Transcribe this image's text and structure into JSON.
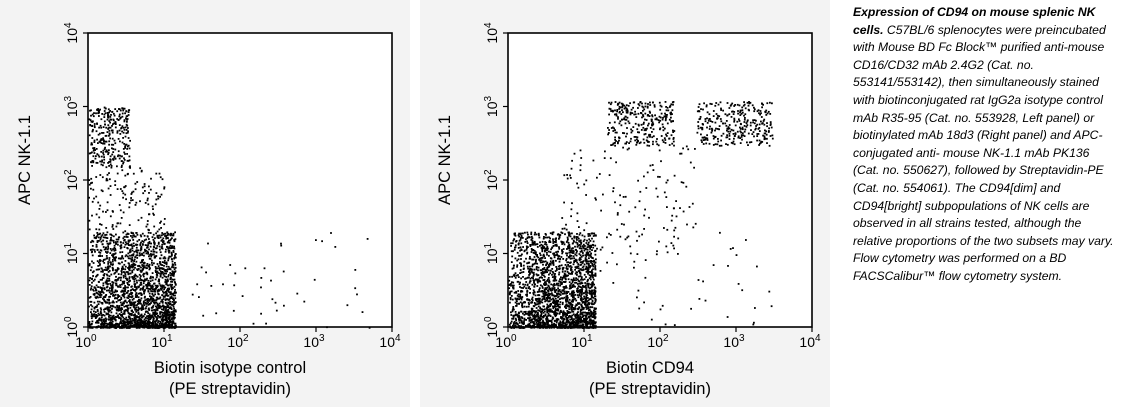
{
  "chart_data": [
    {
      "type": "scatter",
      "panel": "left",
      "xlabel_lines": [
        "Biotin isotype control",
        "(PE streptavidin)"
      ],
      "ylabel": "APC NK-1.1",
      "x_scale": "log",
      "y_scale": "log",
      "xlim": [
        1,
        10000
      ],
      "ylim": [
        1,
        10000
      ],
      "x_ticks": [
        {
          "base": "10",
          "exp": "0",
          "value": 1
        },
        {
          "base": "10",
          "exp": "1",
          "value": 10
        },
        {
          "base": "10",
          "exp": "2",
          "value": 100
        },
        {
          "base": "10",
          "exp": "3",
          "value": 1000
        },
        {
          "base": "10",
          "exp": "4",
          "value": 10000
        }
      ],
      "y_ticks": [
        {
          "base": "10",
          "exp": "0",
          "value": 1
        },
        {
          "base": "10",
          "exp": "1",
          "value": 10
        },
        {
          "base": "10",
          "exp": "2",
          "value": 100
        },
        {
          "base": "10",
          "exp": "3",
          "value": 1000
        },
        {
          "base": "10",
          "exp": "4",
          "value": 10000
        }
      ],
      "grid": false,
      "populations": [
        {
          "label": "NK-1.1 negative",
          "x_range": [
            1,
            14
          ],
          "y_range": [
            1,
            20
          ],
          "density": "very high"
        },
        {
          "label": "NK-1.1 positive",
          "x_range": [
            1,
            3.5
          ],
          "y_range": [
            150,
            1000
          ],
          "density": "medium"
        },
        {
          "label": "intermediate",
          "x_range": [
            1,
            10
          ],
          "y_range": [
            20,
            150
          ],
          "density": "low"
        },
        {
          "label": "scattered",
          "x_range": [
            14,
            5000
          ],
          "y_range": [
            1,
            20
          ],
          "density": "sparse"
        }
      ]
    },
    {
      "type": "scatter",
      "panel": "right",
      "xlabel_lines": [
        "Biotin CD94",
        "(PE streptavidin)"
      ],
      "ylabel": "APC NK-1.1",
      "x_scale": "log",
      "y_scale": "log",
      "xlim": [
        1,
        10000
      ],
      "ylim": [
        1,
        10000
      ],
      "x_ticks": [
        {
          "base": "10",
          "exp": "0",
          "value": 1
        },
        {
          "base": "10",
          "exp": "1",
          "value": 10
        },
        {
          "base": "10",
          "exp": "2",
          "value": 100
        },
        {
          "base": "10",
          "exp": "3",
          "value": 1000
        },
        {
          "base": "10",
          "exp": "4",
          "value": 10000
        }
      ],
      "y_ticks": [
        {
          "base": "10",
          "exp": "0",
          "value": 1
        },
        {
          "base": "10",
          "exp": "1",
          "value": 10
        },
        {
          "base": "10",
          "exp": "2",
          "value": 100
        },
        {
          "base": "10",
          "exp": "3",
          "value": 1000
        },
        {
          "base": "10",
          "exp": "4",
          "value": 10000
        }
      ],
      "grid": false,
      "populations": [
        {
          "label": "NK-1.1 negative",
          "x_range": [
            1,
            14
          ],
          "y_range": [
            1,
            20
          ],
          "density": "very high"
        },
        {
          "label": "CD94 dim NK",
          "x_range": [
            20,
            150
          ],
          "y_range": [
            300,
            1200
          ],
          "density": "medium"
        },
        {
          "label": "CD94 bright NK",
          "x_range": [
            300,
            3000
          ],
          "y_range": [
            300,
            1200
          ],
          "density": "medium"
        },
        {
          "label": "diagonal spread",
          "x_range": [
            5,
            300
          ],
          "y_range": [
            10,
            300
          ],
          "density": "low"
        },
        {
          "label": "scattered",
          "x_range": [
            14,
            3000
          ],
          "y_range": [
            1,
            20
          ],
          "density": "sparse"
        }
      ]
    }
  ],
  "caption": {
    "title": "Expression of CD94 on mouse splenic NK cells.",
    "body": " C57BL/6 splenocytes were preincubated with Mouse BD Fc Block™ purified anti-mouse CD16/CD32 mAb 2.4G2 (Cat. no. 553141/553142), then simultaneously stained with biotinconjugated rat IgG2a isotype control mAb R35-95 (Cat. no. 553928, Left panel) or biotinylated mAb 18d3 (Right panel) and APC-conjugated anti- mouse NK-1.1 mAb PK136 (Cat. no. 550627), followed by Streptavidin-PE (Cat. no. 554061). The CD94[dim] and CD94[bright] subpopulations of NK cells are observed in all strains tested, although the relative proportions of the two subsets may vary. Flow cytometry was performed on a BD FACSCalibur™ flow cytometry system."
  },
  "colors": {
    "panel_background": "#f3f3f3",
    "plot_background": "#ffffff",
    "points": "#000000"
  }
}
